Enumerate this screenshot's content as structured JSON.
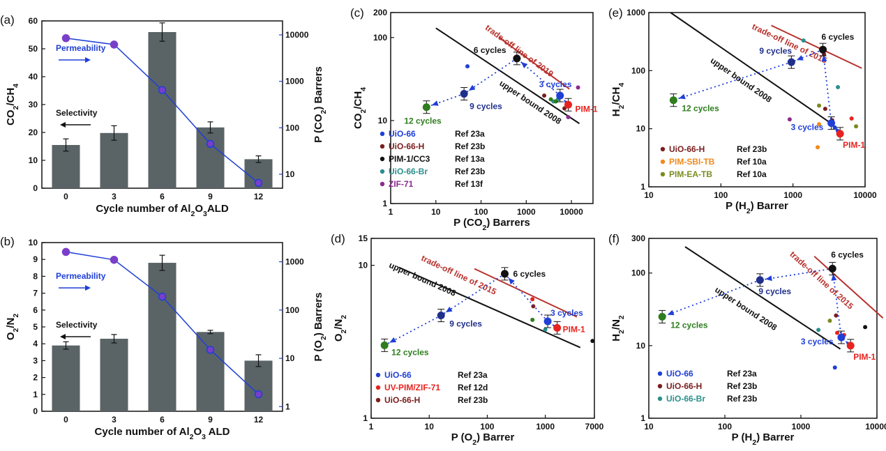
{
  "colors": {
    "bar": "#5a6466",
    "blue": "#1f3fd6",
    "purple": "#7a3fc8",
    "black": "#111111",
    "red": "#e8231f",
    "darkred": "#b7312c",
    "green": "#2e7d1e",
    "navy": "#1f2f8a",
    "teal": "#2a8f8c",
    "maroon": "#7b1e1e",
    "magenta": "#8b2a8f",
    "orange": "#f08a1c",
    "olive": "#7b8a1e"
  },
  "chart_data": [
    {
      "type": "bar",
      "panel": "(a)",
      "categories": [
        "0",
        "3",
        "6",
        "9",
        "12"
      ],
      "xlabel": "Cycle number of Al2O3ALD",
      "ylabel": "CO2/CH4",
      "ylim": [
        0,
        60
      ],
      "yticks": [
        "0",
        "10",
        "20",
        "30",
        "40",
        "50",
        "60"
      ],
      "series": [
        {
          "name": "Selectivity",
          "values": [
            15.5,
            19.8,
            56,
            21.8,
            10.4
          ],
          "errors": [
            2.2,
            2.6,
            3.3,
            2.0,
            1.2
          ]
        }
      ],
      "y2label": "P (CO2) Barrers",
      "y2scale": "log",
      "y2lim": [
        5,
        20000
      ],
      "y2ticks": [
        "10",
        "100",
        "1000",
        "10000"
      ],
      "y2series": [
        {
          "name": "Permeability",
          "values": [
            8500,
            6200,
            650,
            45,
            6.5
          ]
        }
      ],
      "annotations": {
        "permeability": "Permeability",
        "selectivity": "Selectivity"
      }
    },
    {
      "type": "bar",
      "panel": "(b)",
      "categories": [
        "0",
        "3",
        "6",
        "9",
        "12"
      ],
      "xlabel": "Cycle number of Al2O3 ALD",
      "ylabel": "O2/N2",
      "ylim": [
        0,
        10
      ],
      "yticks": [
        "0",
        "1",
        "2",
        "3",
        "4",
        "5",
        "6",
        "7",
        "8",
        "9",
        "10"
      ],
      "series": [
        {
          "name": "Selectivity",
          "values": [
            3.9,
            4.3,
            8.8,
            4.7,
            3.0
          ],
          "errors": [
            0.22,
            0.25,
            0.45,
            0.1,
            0.35
          ]
        }
      ],
      "y2label": "P (O2) Barrers",
      "y2scale": "log",
      "y2lim": [
        0.8,
        2500
      ],
      "y2ticks": [
        "1",
        "10",
        "100",
        "1000"
      ],
      "y2series": [
        {
          "name": "Permeability",
          "values": [
            1600,
            1100,
            190,
            15,
            1.8
          ]
        }
      ],
      "annotations": {
        "permeability": "Permeability",
        "selectivity": "Selectivity"
      }
    },
    {
      "type": "scatter",
      "panel": "(c)",
      "xscale": "log",
      "yscale": "log",
      "xlim": [
        1,
        30000
      ],
      "ylim": [
        1,
        200
      ],
      "xticks": [
        "1",
        "10",
        "100",
        "1000",
        "10000"
      ],
      "yticks": [
        "1",
        "10",
        "100",
        "200"
      ],
      "xlabel": "P (CO2) Barrers",
      "ylabel": "CO2/CH4",
      "lines": [
        {
          "label": "trade-off line of 2019",
          "x": [
            250,
            9000
          ],
          "y": [
            100,
            24
          ]
        },
        {
          "label": "upper bound 2008",
          "x": [
            10,
            15000
          ],
          "y": [
            130,
            9.2
          ]
        }
      ],
      "ald_points": [
        {
          "label": "6 cycles",
          "x": 620,
          "y": 56
        },
        {
          "label": "3 cycles",
          "x": 5600,
          "y": 20
        },
        {
          "label": "9 cycles",
          "x": 42,
          "y": 21
        },
        {
          "label": "12 cycles",
          "x": 6.2,
          "y": 14.5
        },
        {
          "label": "PIM-1",
          "x": 8500,
          "y": 15.5
        }
      ],
      "ref_points": [
        {
          "x": 50,
          "y": 45
        },
        {
          "x": 2500,
          "y": 20
        },
        {
          "x": 4000,
          "y": 17
        },
        {
          "x": 5000,
          "y": 18
        },
        {
          "x": 7000,
          "y": 14
        },
        {
          "x": 8500,
          "y": 11
        },
        {
          "x": 14000,
          "y": 25
        },
        {
          "x": 3500,
          "y": 18
        },
        {
          "x": 4500,
          "y": 17
        }
      ],
      "legend": [
        {
          "label": "UiO-66",
          "ref": "Ref 23a"
        },
        {
          "label": "UiO-66-H",
          "ref": "Ref 23b"
        },
        {
          "label": "PIM-1/CC3",
          "ref": "Ref 13a"
        },
        {
          "label": "UiO-66-Br",
          "ref": "Ref 23b"
        },
        {
          "label": "ZIF-71",
          "ref": "Ref 13f"
        }
      ]
    },
    {
      "type": "scatter",
      "panel": "(d)",
      "xscale": "log",
      "yscale": "log",
      "xlim": [
        1,
        7000
      ],
      "ylim": [
        1,
        15
      ],
      "xticks": [
        "1",
        "10",
        "100",
        "1000",
        "7000"
      ],
      "yticks": [
        "1",
        "10",
        "15"
      ],
      "xlabel": "P (O2) Barrer",
      "ylabel": "O2/N2",
      "lines": [
        {
          "label": "trade-off line of 2015",
          "x": [
            60,
            3500
          ],
          "y": [
            9.5,
            4.6
          ]
        },
        {
          "label": "upper bound 2008",
          "x": [
            3,
            4000
          ],
          "y": [
            9.7,
            2.9
          ]
        }
      ],
      "ald_points": [
        {
          "label": "6 cycles",
          "x": 200,
          "y": 8.8
        },
        {
          "label": "3 cycles",
          "x": 1100,
          "y": 4.3
        },
        {
          "label": "9 cycles",
          "x": 16,
          "y": 4.7
        },
        {
          "label": "12 cycles",
          "x": 1.7,
          "y": 3.0
        },
        {
          "label": "PIM-1",
          "x": 1600,
          "y": 3.9
        }
      ],
      "ref_points": [
        {
          "x": 600,
          "y": 6.0
        },
        {
          "x": 620,
          "y": 5.4
        },
        {
          "x": 600,
          "y": 4.4
        },
        {
          "x": 1000,
          "y": 3.8
        },
        {
          "x": 6500,
          "y": 3.2
        }
      ],
      "legend": [
        {
          "label": "UiO-66",
          "ref": "Ref 23a"
        },
        {
          "label": "UV-PIM/ZIF-71",
          "ref": "Ref 12d"
        },
        {
          "label": "UiO-66-H",
          "ref": "Ref 23b"
        }
      ]
    },
    {
      "type": "scatter",
      "panel": "(e)",
      "xscale": "log",
      "yscale": "log",
      "xlim": [
        10,
        10000
      ],
      "ylim": [
        1,
        1000
      ],
      "xticks": [
        "10",
        "100",
        "1000",
        "10000"
      ],
      "yticks": [
        "1",
        "10",
        "100",
        "1000"
      ],
      "xlabel": "P (H2) Barrer",
      "ylabel": "H2/CH4",
      "lines": [
        {
          "label": "trade-off line of 2015",
          "x": [
            500,
            9000
          ],
          "y": [
            600,
            110
          ]
        },
        {
          "label": "upper bound 2008",
          "x": [
            20,
            3500
          ],
          "y": [
            1000,
            12
          ]
        }
      ],
      "ald_points": [
        {
          "label": "6 cycles",
          "x": 2600,
          "y": 230
        },
        {
          "label": "3 cycles",
          "x": 3400,
          "y": 12.5
        },
        {
          "label": "9 cycles",
          "x": 950,
          "y": 140
        },
        {
          "label": "12 cycles",
          "x": 22,
          "y": 31
        },
        {
          "label": "PIM-1",
          "x": 4500,
          "y": 8.2
        }
      ],
      "ref_points": [
        {
          "x": 1400,
          "y": 330
        },
        {
          "x": 2700,
          "y": 190
        },
        {
          "x": 4200,
          "y": 52
        },
        {
          "x": 2300,
          "y": 25
        },
        {
          "x": 2800,
          "y": 22
        },
        {
          "x": 900,
          "y": 14.5
        },
        {
          "x": 3500,
          "y": 14
        },
        {
          "x": 6500,
          "y": 15
        },
        {
          "x": 2300,
          "y": 12
        },
        {
          "x": 3800,
          "y": 10.5
        },
        {
          "x": 7500,
          "y": 11
        },
        {
          "x": 2200,
          "y": 4.8
        }
      ],
      "legend": [
        {
          "label": "UiO-66-H",
          "ref": "Ref 23b"
        },
        {
          "label": "PIM-SBI-TB",
          "ref": "Ref 10a"
        },
        {
          "label": "PIM-EA-TB",
          "ref": "Ref 10a"
        }
      ]
    },
    {
      "type": "scatter",
      "panel": "(f)",
      "xscale": "log",
      "yscale": "log",
      "xlim": [
        10,
        10000
      ],
      "ylim": [
        1,
        300
      ],
      "xticks": [
        "10",
        "100",
        "1000",
        "10000"
      ],
      "yticks": [
        "1",
        "10",
        "100",
        "300"
      ],
      "xlabel": "P (H2) Barrer",
      "ylabel": "H2/N2",
      "lines": [
        {
          "label": "trade-off line of 2015",
          "x": [
            1500,
            12000
          ],
          "y": [
            170,
            24
          ]
        },
        {
          "label": "upper bound 2008",
          "x": [
            30,
            3300
          ],
          "y": [
            230,
            9
          ]
        }
      ],
      "ald_points": [
        {
          "label": "6 cycles",
          "x": 2600,
          "y": 115
        },
        {
          "label": "3 cycles",
          "x": 3400,
          "y": 13
        },
        {
          "label": "9 cycles",
          "x": 290,
          "y": 80
        },
        {
          "label": "12 cycles",
          "x": 15,
          "y": 25
        },
        {
          "label": "PIM-1",
          "x": 4500,
          "y": 10
        }
      ],
      "ref_points": [
        {
          "x": 2900,
          "y": 26
        },
        {
          "x": 2400,
          "y": 22
        },
        {
          "x": 3000,
          "y": 15
        },
        {
          "x": 3700,
          "y": 14
        },
        {
          "x": 1700,
          "y": 16.5
        },
        {
          "x": 7000,
          "y": 18
        },
        {
          "x": 2800,
          "y": 5
        }
      ],
      "legend": [
        {
          "label": "UiO-66",
          "ref": "Ref 23a"
        },
        {
          "label": "UiO-66-H",
          "ref": "Ref 23b"
        },
        {
          "label": "UiO-66-Br",
          "ref": "Ref 23b"
        }
      ]
    }
  ]
}
